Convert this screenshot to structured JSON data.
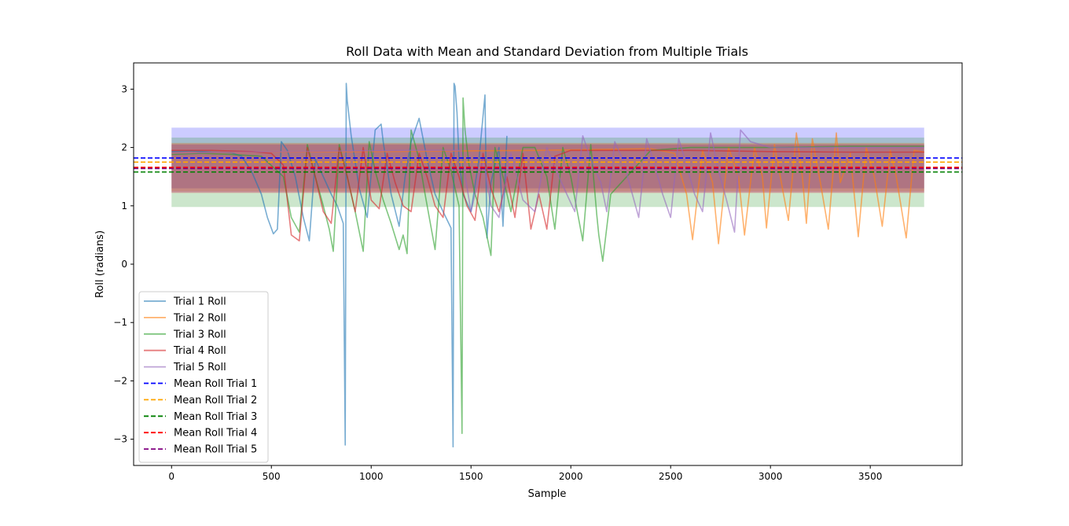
{
  "chart_data": {
    "type": "line",
    "title": "Roll Data with Mean and Standard Deviation from Multiple Trials",
    "xlabel": "Sample",
    "ylabel": "Roll (radians)",
    "xlim": [
      -190,
      3960
    ],
    "ylim": [
      -3.45,
      3.45
    ],
    "xticks": [
      0,
      500,
      1000,
      1500,
      2000,
      2500,
      3000,
      3500
    ],
    "yticks": [
      -3,
      -2,
      -1,
      0,
      1,
      2,
      3
    ],
    "ytick_labels": [
      "−3",
      "−2",
      "−1",
      "0",
      "1",
      "2",
      "3"
    ],
    "grid": false,
    "legend_position": "lower-left",
    "series": [
      {
        "name": "Trial 1 Roll",
        "color": "#1f77b4",
        "x": [
          0,
          100,
          200,
          300,
          350,
          400,
          450,
          480,
          510,
          530,
          550,
          580,
          620,
          660,
          690,
          720,
          760,
          800,
          830,
          860,
          870,
          875,
          880,
          900,
          940,
          980,
          1020,
          1050,
          1060,
          1100,
          1140,
          1170,
          1200,
          1240,
          1280,
          1320,
          1360,
          1400,
          1410,
          1415,
          1420,
          1430,
          1440,
          1460,
          1500,
          1540,
          1570,
          1580,
          1600,
          1640,
          1660,
          1680
        ],
        "y": [
          1.93,
          1.94,
          1.92,
          1.91,
          1.85,
          1.6,
          1.2,
          0.8,
          0.52,
          0.6,
          2.1,
          1.95,
          1.5,
          0.8,
          0.4,
          1.8,
          1.5,
          1.2,
          1.0,
          0.7,
          -3.1,
          3.1,
          2.8,
          2.2,
          1.3,
          0.8,
          2.3,
          2.4,
          2.1,
          1.2,
          0.65,
          1.5,
          2.1,
          2.5,
          1.8,
          1.2,
          0.9,
          0.62,
          -3.13,
          3.1,
          3.05,
          2.6,
          1.8,
          1.2,
          0.9,
          1.8,
          2.9,
          0.45,
          1.4,
          2.0,
          0.65,
          2.2
        ]
      },
      {
        "name": "Trial 2 Roll",
        "color": "#ff7f0e",
        "x": [
          0,
          400,
          1000,
          1800,
          2400,
          2520,
          2580,
          2610,
          2660,
          2710,
          2740,
          2790,
          2840,
          2870,
          2920,
          2960,
          2980,
          3020,
          3060,
          3090,
          3130,
          3160,
          3180,
          3210,
          3250,
          3290,
          3330,
          3350,
          3400,
          3440,
          3480,
          3520,
          3560,
          3600,
          3630,
          3680,
          3720,
          3770
        ],
        "y": [
          1.9,
          1.92,
          1.93,
          1.95,
          1.98,
          1.9,
          1.2,
          0.42,
          1.95,
          1.4,
          0.35,
          2.0,
          1.5,
          0.5,
          2.0,
          1.5,
          0.62,
          2.05,
          1.3,
          0.75,
          2.25,
          1.5,
          0.7,
          2.15,
          1.4,
          0.6,
          2.25,
          1.4,
          1.9,
          0.47,
          2.0,
          1.5,
          0.65,
          1.95,
          1.5,
          0.45,
          1.95,
          1.92
        ]
      },
      {
        "name": "Trial 3 Roll",
        "color": "#2ca02c",
        "x": [
          0,
          150,
          300,
          450,
          560,
          600,
          640,
          680,
          720,
          760,
          790,
          810,
          840,
          880,
          920,
          960,
          990,
          1020,
          1060,
          1100,
          1140,
          1160,
          1180,
          1200,
          1240,
          1270,
          1320,
          1360,
          1400,
          1440,
          1455,
          1460,
          1470,
          1490,
          1520,
          1560,
          1600,
          1620,
          1660,
          1700,
          1760,
          1820,
          1880,
          1920,
          1960,
          2000,
          2060,
          2100,
          2130,
          2140,
          2160,
          2200,
          2400,
          2600,
          3000,
          3400,
          3770
        ],
        "y": [
          1.88,
          1.9,
          1.88,
          1.85,
          1.5,
          0.8,
          0.55,
          2.05,
          1.5,
          1.0,
          0.6,
          0.22,
          2.05,
          1.5,
          0.9,
          0.22,
          2.1,
          1.6,
          1.1,
          0.7,
          0.25,
          0.5,
          0.18,
          2.3,
          1.8,
          1.2,
          0.25,
          2.0,
          1.6,
          1.0,
          -2.9,
          2.85,
          2.3,
          1.7,
          1.2,
          0.8,
          0.15,
          2.0,
          1.5,
          0.9,
          2.0,
          2.0,
          1.5,
          0.6,
          2.0,
          1.5,
          0.4,
          2.05,
          0.85,
          0.5,
          0.05,
          1.2,
          1.95,
          2.0,
          2.0,
          2.02,
          2.02
        ]
      },
      {
        "name": "Trial 4 Roll",
        "color": "#d62728",
        "x": [
          0,
          200,
          400,
          500,
          560,
          600,
          640,
          680,
          720,
          760,
          800,
          840,
          880,
          920,
          960,
          1000,
          1040,
          1080,
          1120,
          1160,
          1200,
          1240,
          1280,
          1320,
          1360,
          1400,
          1440,
          1480,
          1520,
          1560,
          1600,
          1640,
          1680,
          1720,
          1760,
          1800,
          1840,
          1880,
          1920,
          2000,
          2200,
          2600,
          3000,
          3400,
          3770
        ],
        "y": [
          1.95,
          1.95,
          1.93,
          1.9,
          1.7,
          0.5,
          0.4,
          2.0,
          1.5,
          0.9,
          0.7,
          2.0,
          1.5,
          0.9,
          2.0,
          1.1,
          0.95,
          1.9,
          1.4,
          1.0,
          0.9,
          1.9,
          1.5,
          1.0,
          0.8,
          1.9,
          1.5,
          1.0,
          0.75,
          1.9,
          1.3,
          0.9,
          1.5,
          0.8,
          1.9,
          0.6,
          1.2,
          0.6,
          1.85,
          1.95,
          1.95,
          1.95,
          1.93,
          1.92,
          1.92
        ]
      },
      {
        "name": "Trial 5 Roll",
        "color": "#9467bd",
        "x": [
          0,
          300,
          600,
          900,
          1200,
          1450,
          1500,
          1560,
          1600,
          1640,
          1700,
          1760,
          1820,
          1880,
          1940,
          1980,
          2020,
          2060,
          2100,
          2150,
          2180,
          2220,
          2260,
          2300,
          2340,
          2380,
          2420,
          2460,
          2500,
          2540,
          2580,
          2620,
          2660,
          2700,
          2740,
          2780,
          2820,
          2850,
          2900,
          3000,
          3400,
          3770
        ],
        "y": [
          1.9,
          1.92,
          1.93,
          1.94,
          1.95,
          1.95,
          0.9,
          1.8,
          1.0,
          0.8,
          1.9,
          1.1,
          0.9,
          2.0,
          1.5,
          1.2,
          0.9,
          2.2,
          1.8,
          1.4,
          0.9,
          2.1,
          1.8,
          1.3,
          0.8,
          2.15,
          1.7,
          1.2,
          0.8,
          2.15,
          1.7,
          1.2,
          0.9,
          2.25,
          1.6,
          1.1,
          0.55,
          2.3,
          2.1,
          2.0,
          2.0,
          2.0
        ]
      }
    ],
    "means": [
      {
        "name": "Mean Roll Trial 1",
        "value": 1.82,
        "color": "#0000ff"
      },
      {
        "name": "Mean Roll Trial 2",
        "value": 1.75,
        "color": "#ffa500"
      },
      {
        "name": "Mean Roll Trial 3",
        "value": 1.58,
        "color": "#008000"
      },
      {
        "name": "Mean Roll Trial 4",
        "value": 1.66,
        "color": "#ff0000"
      },
      {
        "name": "Mean Roll Trial 5",
        "value": 1.64,
        "color": "#800080"
      }
    ],
    "std_bands": [
      {
        "lo": 1.3,
        "hi": 2.34,
        "color": "#0000ff"
      },
      {
        "lo": 1.25,
        "hi": 2.08,
        "color": "#ffa500"
      },
      {
        "lo": 0.98,
        "hi": 2.17,
        "color": "#008000"
      },
      {
        "lo": 1.22,
        "hi": 2.07,
        "color": "#ff0000"
      },
      {
        "lo": 1.23,
        "hi": 2.05,
        "color": "#800080"
      }
    ],
    "band_x_range": [
      0,
      3770
    ]
  }
}
